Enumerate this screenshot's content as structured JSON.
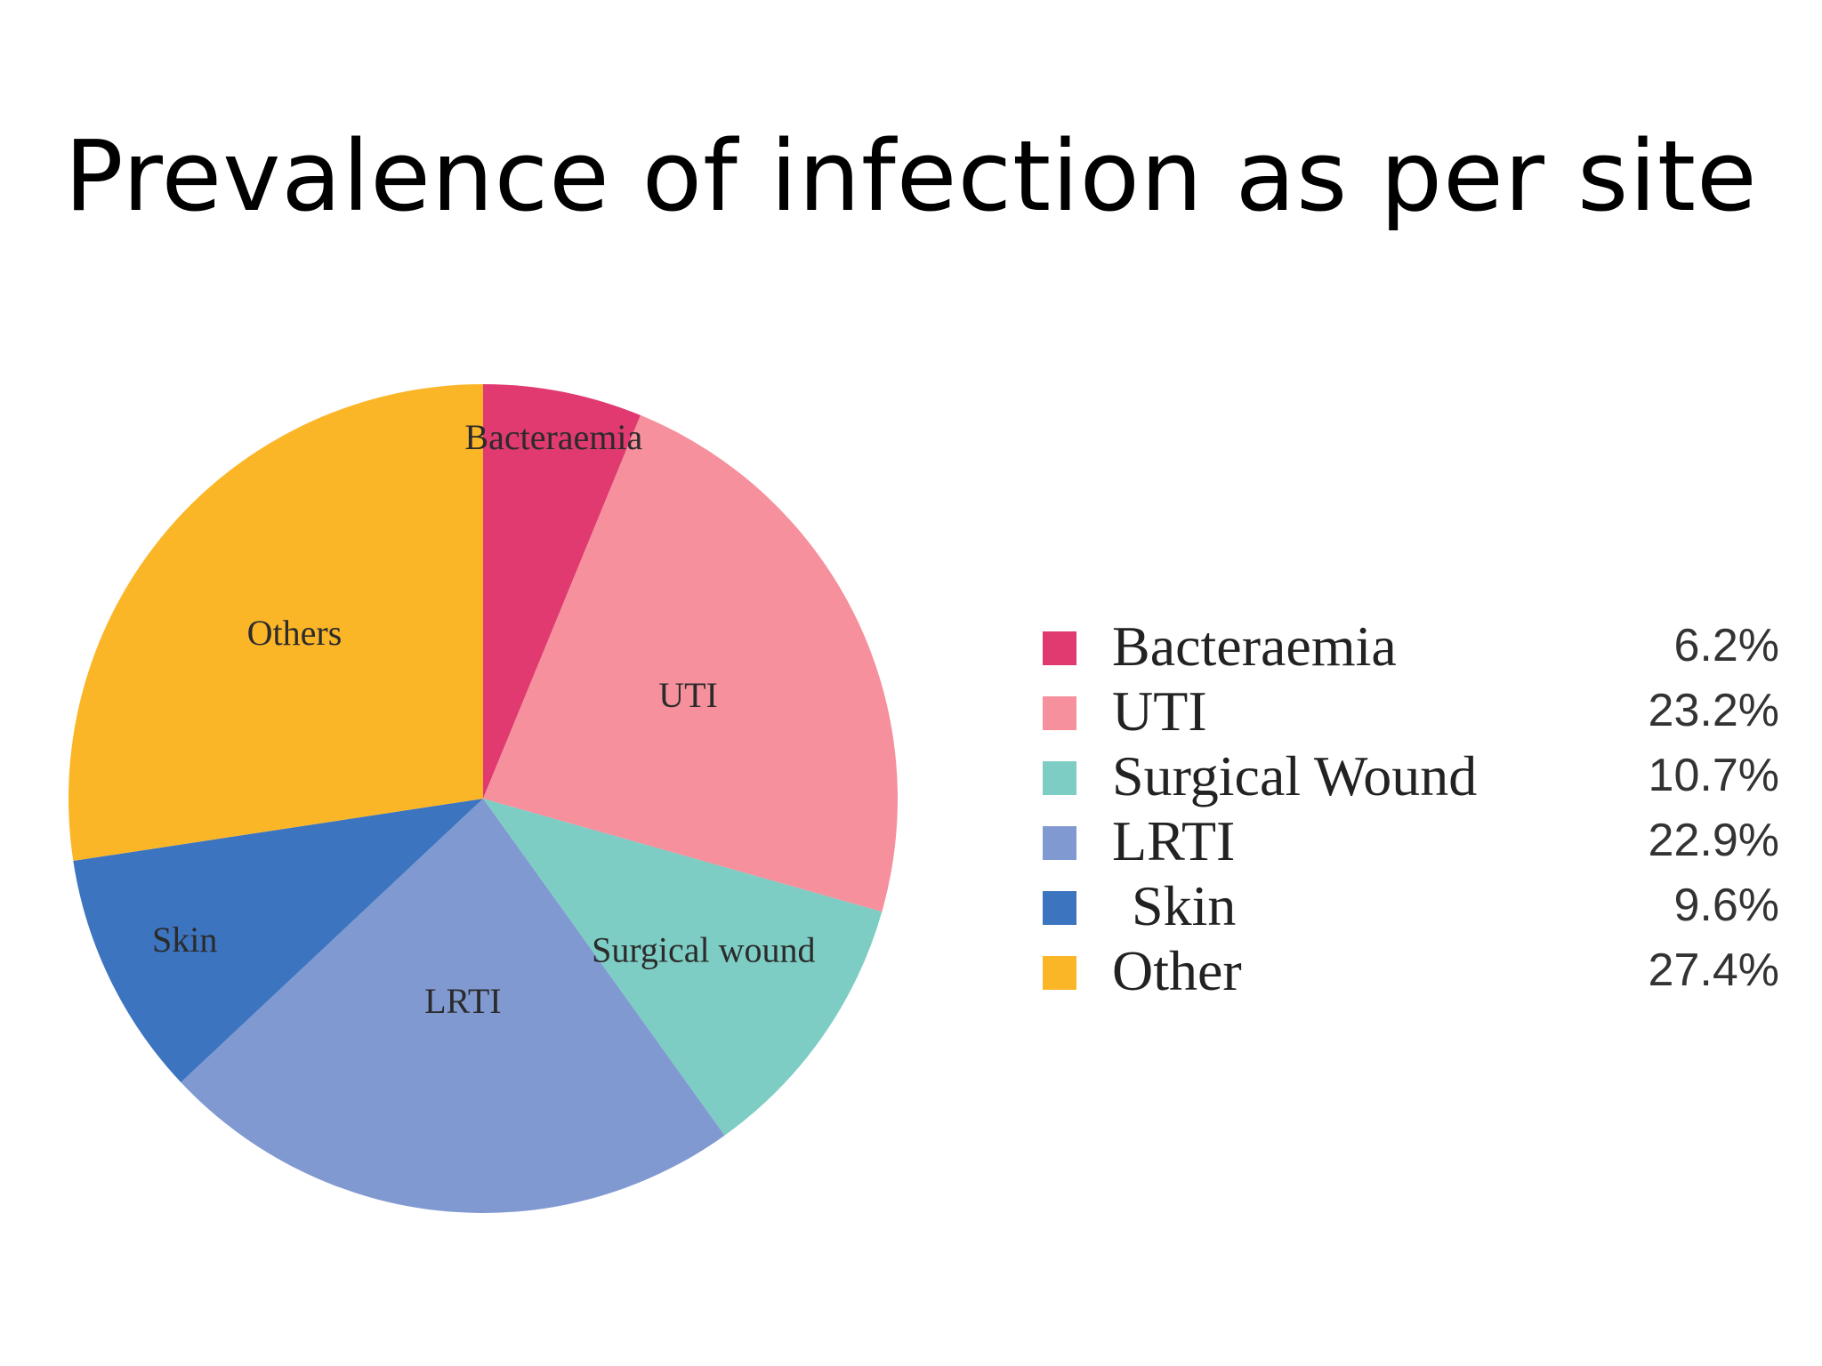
{
  "title": "Prevalence of infection as per site",
  "chart_data": {
    "type": "pie",
    "slices": [
      {
        "name": "Bacteraemia",
        "slice_label": "Bacteraemia",
        "legend_label": "Bacteraemia",
        "value": 6.2,
        "display": "6.2%",
        "color": "#e03a70"
      },
      {
        "name": "UTI",
        "slice_label": "UTI",
        "legend_label": "UTI",
        "value": 23.2,
        "display": "23.2%",
        "color": "#f5909c"
      },
      {
        "name": "Surgical Wound",
        "slice_label": "Surgical wound",
        "legend_label": "Surgical Wound",
        "value": 10.7,
        "display": "10.7%",
        "color": "#7dcdc4"
      },
      {
        "name": "LRTI",
        "slice_label": "LRTI",
        "legend_label": "LRTI",
        "value": 22.9,
        "display": "22.9%",
        "color": "#8199d1"
      },
      {
        "name": "Skin",
        "slice_label": "Skin",
        "legend_label": "Skin",
        "value": 9.6,
        "display": "9.6%",
        "color": "#3c74bf"
      },
      {
        "name": "Other",
        "slice_label": "Others",
        "legend_label": "Other",
        "value": 27.4,
        "display": "27.4%",
        "color": "#fbb628"
      }
    ],
    "legend_position": "right"
  }
}
